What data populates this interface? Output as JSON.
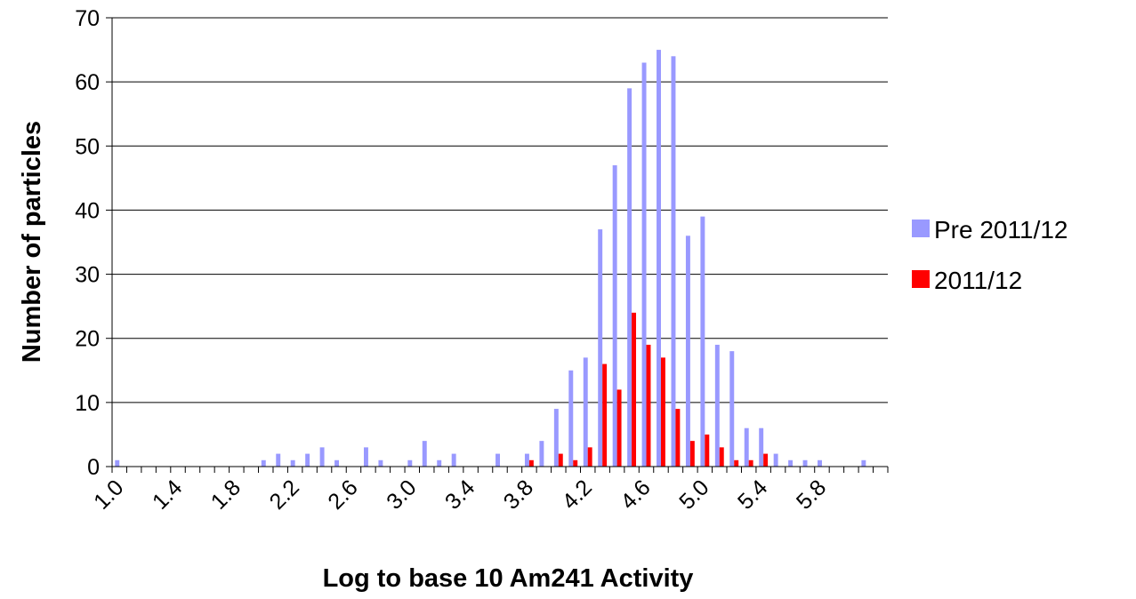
{
  "chart_data": {
    "type": "bar",
    "title": "",
    "xlabel": "Log to base 10 Am241 Activity",
    "ylabel": "Number of particles",
    "ylim": [
      0,
      70
    ],
    "yticks": [
      0,
      10,
      20,
      30,
      40,
      50,
      60,
      70
    ],
    "grid": true,
    "legend_position": "right",
    "categories": [
      "1.0",
      "1.1",
      "1.2",
      "1.3",
      "1.4",
      "1.5",
      "1.6",
      "1.7",
      "1.8",
      "1.9",
      "2.0",
      "2.1",
      "2.2",
      "2.3",
      "2.4",
      "2.5",
      "2.6",
      "2.7",
      "2.8",
      "2.9",
      "3.0",
      "3.1",
      "3.2",
      "3.3",
      "3.4",
      "3.5",
      "3.6",
      "3.7",
      "3.8",
      "3.9",
      "4.0",
      "4.1",
      "4.2",
      "4.3",
      "4.4",
      "4.5",
      "4.6",
      "4.7",
      "4.8",
      "4.9",
      "5.0",
      "5.1",
      "5.2",
      "5.3",
      "5.4",
      "5.5",
      "5.6",
      "5.7",
      "5.8",
      "5.9",
      "6.0",
      "6.1",
      "6.2"
    ],
    "tick_labels": [
      "1.0",
      "1.4",
      "1.8",
      "2.2",
      "2.6",
      "3.0",
      "3.4",
      "3.8",
      "4.2",
      "4.6",
      "5.0",
      "5.4",
      "5.8"
    ],
    "series": [
      {
        "name": "Pre 2011/12",
        "color": "#9999ff",
        "values": [
          1,
          0,
          0,
          0,
          0,
          0,
          0,
          0,
          0,
          0,
          1,
          2,
          1,
          2,
          3,
          1,
          0,
          3,
          1,
          0,
          1,
          4,
          1,
          2,
          0,
          0,
          2,
          0,
          2,
          4,
          9,
          15,
          17,
          37,
          47,
          59,
          63,
          65,
          64,
          36,
          39,
          19,
          18,
          6,
          6,
          2,
          1,
          1,
          1,
          0,
          0,
          1,
          0
        ]
      },
      {
        "name": "2011/12",
        "color": "#ff0000",
        "values": [
          0,
          0,
          0,
          0,
          0,
          0,
          0,
          0,
          0,
          0,
          0,
          0,
          0,
          0,
          0,
          0,
          0,
          0,
          0,
          0,
          0,
          0,
          0,
          0,
          0,
          0,
          0,
          0,
          1,
          0,
          2,
          1,
          3,
          16,
          12,
          24,
          19,
          17,
          9,
          4,
          5,
          3,
          1,
          1,
          2,
          0,
          0,
          0,
          0,
          0,
          0,
          0,
          0
        ]
      }
    ]
  }
}
